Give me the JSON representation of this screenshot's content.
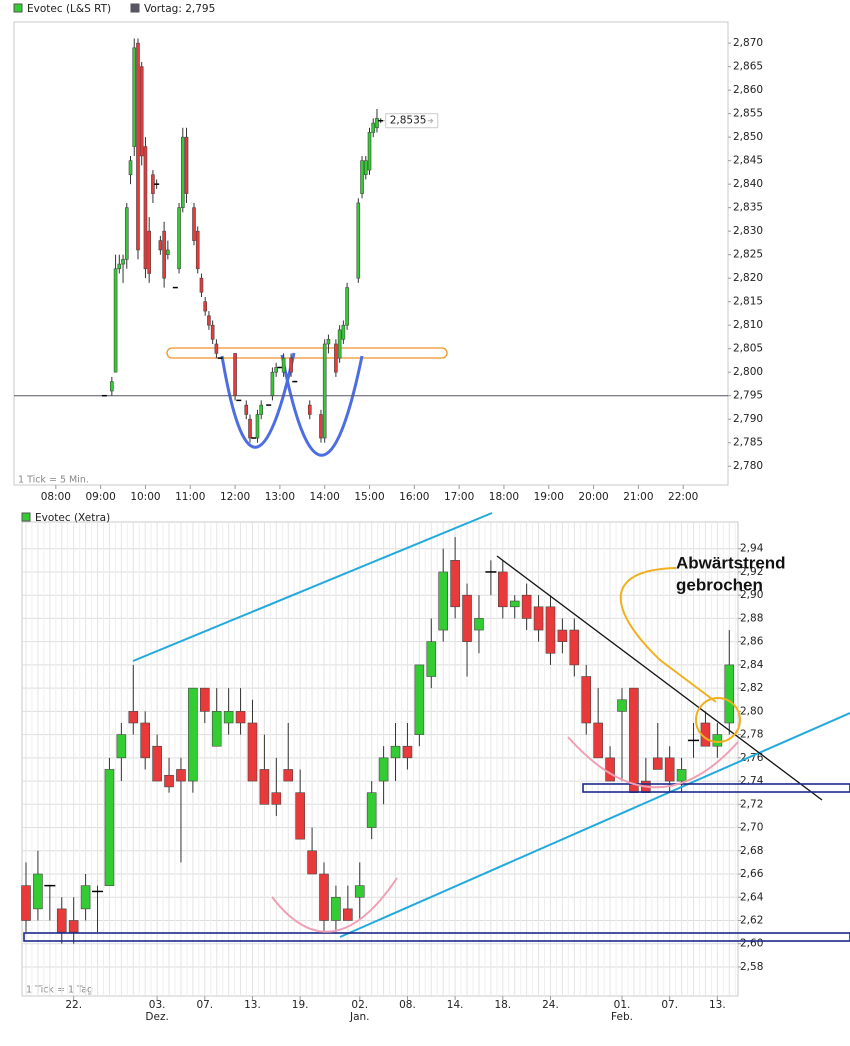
{
  "chart_data": [
    {
      "type": "candlestick",
      "legend": [
        "Evotec (L&S RT)",
        "Vortag: 2,795"
      ],
      "legend_colors": [
        "#33cc33",
        "#555566"
      ],
      "previous_close": 2.795,
      "last_value": 2.8535,
      "last_value_label": "2,8535",
      "footnote": "1 Tick = 5 Min.",
      "up_color": "#33cc33",
      "down_color": "#e83a3a",
      "x": [
        545,
        555,
        560,
        565,
        570,
        575,
        580,
        585,
        590,
        595,
        600,
        605,
        610,
        615,
        620,
        625,
        630,
        640,
        645,
        650,
        655,
        665,
        670,
        675,
        680,
        685,
        690,
        695,
        700,
        720,
        725,
        735,
        740,
        745,
        750,
        755,
        765,
        770,
        775,
        780,
        785,
        795,
        800,
        820,
        835,
        840,
        845,
        855,
        860,
        865,
        870,
        885,
        890,
        895,
        900,
        905,
        910,
        915
      ],
      "open": [
        2.795,
        2.796,
        2.8,
        2.822,
        2.823,
        2.824,
        2.842,
        2.848,
        2.87,
        2.865,
        2.848,
        2.83,
        2.842,
        2.84,
        2.828,
        2.83,
        2.825,
        2.818,
        2.822,
        2.835,
        2.85,
        2.835,
        2.83,
        2.82,
        2.815,
        2.812,
        2.81,
        2.806,
        2.803,
        2.804,
        2.794,
        2.793,
        2.79,
        2.786,
        2.786,
        2.791,
        2.793,
        2.795,
        2.8,
        2.801,
        2.8,
        2.803,
        2.798,
        2.793,
        2.791,
        2.786,
        2.806,
        2.806,
        2.803,
        2.807,
        2.81,
        2.82,
        2.838,
        2.842,
        2.843,
        2.851,
        2.852,
        2.8535
      ],
      "high": [
        2.795,
        2.799,
        2.825,
        2.825,
        2.825,
        2.836,
        2.846,
        2.871,
        2.871,
        2.866,
        2.85,
        2.833,
        2.843,
        2.841,
        2.829,
        2.832,
        2.828,
        2.818,
        2.836,
        2.852,
        2.852,
        2.836,
        2.831,
        2.821,
        2.816,
        2.813,
        2.811,
        2.807,
        2.803,
        2.804,
        2.794,
        2.794,
        2.791,
        2.786,
        2.792,
        2.794,
        2.793,
        2.801,
        2.802,
        2.801,
        2.804,
        2.804,
        2.798,
        2.794,
        2.792,
        2.807,
        2.808,
        2.807,
        2.81,
        2.811,
        2.819,
        2.837,
        2.846,
        2.846,
        2.852,
        2.854,
        2.856,
        2.854
      ],
      "low": [
        2.795,
        2.795,
        2.8,
        2.821,
        2.819,
        2.822,
        2.84,
        2.846,
        2.824,
        2.844,
        2.82,
        2.819,
        2.836,
        2.839,
        2.825,
        2.818,
        2.824,
        2.818,
        2.821,
        2.834,
        2.836,
        2.827,
        2.821,
        2.816,
        2.812,
        2.809,
        2.806,
        2.803,
        2.803,
        2.794,
        2.794,
        2.79,
        2.785,
        2.786,
        2.785,
        2.79,
        2.793,
        2.794,
        2.799,
        2.801,
        2.799,
        2.799,
        2.798,
        2.79,
        2.785,
        2.785,
        2.804,
        2.799,
        2.802,
        2.806,
        2.809,
        2.819,
        2.837,
        2.841,
        2.842,
        2.85,
        2.851,
        2.853
      ],
      "close": [
        2.795,
        2.798,
        2.822,
        2.823,
        2.824,
        2.835,
        2.845,
        2.869,
        2.826,
        2.846,
        2.822,
        2.821,
        2.838,
        2.84,
        2.826,
        2.82,
        2.826,
        2.818,
        2.835,
        2.85,
        2.838,
        2.828,
        2.822,
        2.817,
        2.813,
        2.81,
        2.807,
        2.804,
        2.803,
        2.795,
        2.794,
        2.791,
        2.786,
        2.786,
        2.791,
        2.793,
        2.793,
        2.8,
        2.801,
        2.801,
        2.803,
        2.8,
        2.798,
        2.791,
        2.786,
        2.806,
        2.807,
        2.8,
        2.809,
        2.81,
        2.818,
        2.836,
        2.845,
        2.845,
        2.851,
        2.853,
        2.854,
        2.8535
      ],
      "xlim": [
        424,
        1380
      ],
      "xticks": [
        {
          "value": 480,
          "label": "08:00"
        },
        {
          "value": 540,
          "label": "09:00"
        },
        {
          "value": 600,
          "label": "10:00"
        },
        {
          "value": 660,
          "label": "11:00"
        },
        {
          "value": 720,
          "label": "12:00"
        },
        {
          "value": 780,
          "label": "13:00"
        },
        {
          "value": 840,
          "label": "14:00"
        },
        {
          "value": 900,
          "label": "15:00"
        },
        {
          "value": 960,
          "label": "16:00"
        },
        {
          "value": 1020,
          "label": "17:00"
        },
        {
          "value": 1080,
          "label": "18:00"
        },
        {
          "value": 1140,
          "label": "19:00"
        },
        {
          "value": 1200,
          "label": "20:00"
        },
        {
          "value": 1260,
          "label": "21:00"
        },
        {
          "value": 1320,
          "label": "22:00"
        }
      ],
      "ylim": [
        2.776,
        2.8745
      ],
      "yticks": [
        {
          "value": 2.78,
          "label": "2,780"
        },
        {
          "value": 2.785,
          "label": "2,785"
        },
        {
          "value": 2.79,
          "label": "2,790"
        },
        {
          "value": 2.795,
          "label": "2,795"
        },
        {
          "value": 2.8,
          "label": "2,800"
        },
        {
          "value": 2.805,
          "label": "2,805"
        },
        {
          "value": 2.81,
          "label": "2,810"
        },
        {
          "value": 2.815,
          "label": "2,815"
        },
        {
          "value": 2.82,
          "label": "2,820"
        },
        {
          "value": 2.825,
          "label": "2,825"
        },
        {
          "value": 2.83,
          "label": "2,830"
        },
        {
          "value": 2.835,
          "label": "2,835"
        },
        {
          "value": 2.84,
          "label": "2,840"
        },
        {
          "value": 2.845,
          "label": "2,845"
        },
        {
          "value": 2.85,
          "label": "2,850"
        },
        {
          "value": 2.855,
          "label": "2,855"
        },
        {
          "value": 2.86,
          "label": "2,860"
        },
        {
          "value": 2.865,
          "label": "2,865"
        },
        {
          "value": 2.87,
          "label": "2,870"
        }
      ],
      "grid": false
    },
    {
      "type": "candlestick",
      "legend": [
        "Evotec (Xetra)"
      ],
      "legend_colors": [
        "#33cc33"
      ],
      "footnote": "1 Tick = 1 Tag",
      "annotation": [
        "Abwärtstrend",
        "gebrochen"
      ],
      "up_color": "#33cc33",
      "down_color": "#e83a3a",
      "categories": [
        null,
        null,
        null,
        null,
        "22.",
        null,
        null,
        null,
        null,
        null,
        null,
        "03.",
        null,
        null,
        null,
        "07.",
        null,
        null,
        null,
        "13.",
        null,
        null,
        null,
        "19.",
        null,
        null,
        null,
        null,
        "02.",
        null,
        null,
        null,
        "08.",
        null,
        null,
        null,
        "14.",
        null,
        null,
        null,
        "18.",
        null,
        null,
        null,
        "24.",
        null,
        null,
        null,
        null,
        null,
        "01.",
        null,
        null,
        null,
        "07.",
        null,
        null,
        null,
        "13.",
        null
      ],
      "month_labels": [
        null,
        null,
        null,
        null,
        null,
        null,
        null,
        null,
        null,
        null,
        null,
        "Dez.",
        null,
        null,
        null,
        null,
        null,
        null,
        null,
        null,
        null,
        null,
        null,
        null,
        null,
        null,
        null,
        null,
        "Jan.",
        null,
        null,
        null,
        null,
        null,
        null,
        null,
        null,
        null,
        null,
        null,
        null,
        null,
        null,
        null,
        null,
        null,
        null,
        null,
        null,
        null,
        "Feb.",
        null,
        null,
        null,
        null,
        null,
        null,
        null,
        null,
        null
      ],
      "open": [
        2.65,
        2.63,
        2.65,
        2.63,
        2.62,
        2.63,
        2.645,
        2.65,
        2.76,
        2.8,
        2.79,
        2.77,
        2.745,
        2.75,
        2.74,
        2.82,
        2.77,
        2.79,
        2.8,
        2.79,
        2.75,
        2.73,
        2.75,
        2.73,
        2.68,
        2.66,
        2.62,
        2.63,
        2.64,
        2.7,
        2.74,
        2.76,
        2.77,
        2.78,
        2.83,
        2.87,
        2.93,
        2.9,
        2.87,
        2.92,
        2.92,
        2.89,
        2.9,
        2.89,
        2.89,
        2.87,
        2.87,
        2.83,
        2.79,
        2.76,
        2.8,
        2.82,
        2.74,
        2.76,
        2.76,
        2.74,
        2.775,
        2.79,
        2.77,
        2.79
      ],
      "high": [
        2.67,
        2.68,
        2.65,
        2.64,
        2.64,
        2.66,
        2.65,
        2.76,
        2.79,
        2.84,
        2.8,
        2.78,
        2.76,
        2.76,
        2.82,
        2.82,
        2.82,
        2.82,
        2.82,
        2.81,
        2.78,
        2.76,
        2.79,
        2.75,
        2.7,
        2.67,
        2.65,
        2.65,
        2.67,
        2.74,
        2.77,
        2.79,
        2.79,
        2.84,
        2.88,
        2.94,
        2.95,
        2.91,
        2.9,
        2.93,
        2.93,
        2.9,
        2.91,
        2.9,
        2.9,
        2.88,
        2.88,
        2.84,
        2.82,
        2.77,
        2.82,
        2.82,
        2.76,
        2.79,
        2.77,
        2.76,
        2.79,
        2.8,
        2.79,
        2.87
      ],
      "low": [
        2.61,
        2.62,
        2.62,
        2.6,
        2.6,
        2.62,
        2.61,
        2.65,
        2.74,
        2.78,
        2.75,
        2.74,
        2.73,
        2.67,
        2.73,
        2.79,
        2.77,
        2.78,
        2.78,
        2.74,
        2.72,
        2.71,
        2.74,
        2.69,
        2.66,
        2.61,
        2.61,
        2.62,
        2.62,
        2.69,
        2.72,
        2.74,
        2.75,
        2.77,
        2.82,
        2.86,
        2.88,
        2.83,
        2.85,
        2.9,
        2.88,
        2.88,
        2.87,
        2.86,
        2.84,
        2.85,
        2.83,
        2.78,
        2.76,
        2.74,
        2.74,
        2.73,
        2.73,
        2.75,
        2.73,
        2.73,
        2.76,
        2.77,
        2.76,
        2.78
      ],
      "close": [
        2.62,
        2.66,
        2.65,
        2.61,
        2.61,
        2.65,
        2.645,
        2.75,
        2.78,
        2.79,
        2.76,
        2.74,
        2.735,
        2.74,
        2.82,
        2.8,
        2.8,
        2.8,
        2.79,
        2.74,
        2.72,
        2.72,
        2.74,
        2.69,
        2.66,
        2.62,
        2.64,
        2.62,
        2.65,
        2.73,
        2.76,
        2.77,
        2.76,
        2.84,
        2.86,
        2.92,
        2.89,
        2.86,
        2.88,
        2.92,
        2.89,
        2.895,
        2.88,
        2.87,
        2.85,
        2.86,
        2.84,
        2.79,
        2.76,
        2.74,
        2.81,
        2.73,
        2.73,
        2.75,
        2.74,
        2.75,
        2.775,
        2.77,
        2.78,
        2.84
      ],
      "ylim": [
        2.555,
        2.963
      ],
      "yticks": [
        {
          "value": 2.58,
          "label": "2,58"
        },
        {
          "value": 2.6,
          "label": "2,60"
        },
        {
          "value": 2.62,
          "label": "2,62"
        },
        {
          "value": 2.64,
          "label": "2,64"
        },
        {
          "value": 2.66,
          "label": "2,66"
        },
        {
          "value": 2.68,
          "label": "2,68"
        },
        {
          "value": 2.7,
          "label": "2,70"
        },
        {
          "value": 2.72,
          "label": "2,72"
        },
        {
          "value": 2.74,
          "label": "2,74"
        },
        {
          "value": 2.76,
          "label": "2,76"
        },
        {
          "value": 2.78,
          "label": "2,78"
        },
        {
          "value": 2.8,
          "label": "2,80"
        },
        {
          "value": 2.82,
          "label": "2,82"
        },
        {
          "value": 2.84,
          "label": "2,84"
        },
        {
          "value": 2.86,
          "label": "2,86"
        },
        {
          "value": 2.88,
          "label": "2,88"
        },
        {
          "value": 2.9,
          "label": "2,90"
        },
        {
          "value": 2.92,
          "label": "2,92"
        },
        {
          "value": 2.94,
          "label": "2,94"
        }
      ],
      "grid": true
    }
  ]
}
